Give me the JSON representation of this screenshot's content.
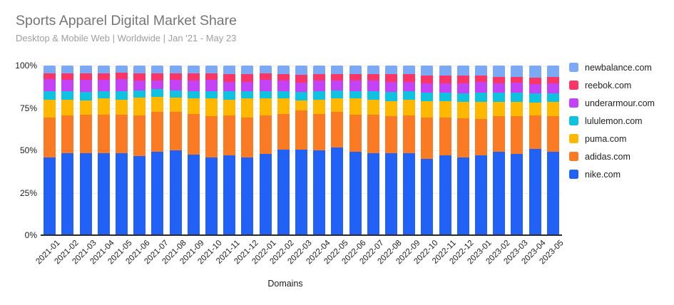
{
  "chart_data": {
    "type": "bar",
    "stacked": true,
    "stack_mode": "percent",
    "title": "Sports Apparel Digital Market Share",
    "subtitle": "Desktop & Mobile Web | Worldwide | Jan '21 - May 23",
    "xlabel": "Domains",
    "ylabel": "",
    "ylim": [
      0,
      100
    ],
    "grid": true,
    "legend_position": "right",
    "ytick_values": [
      0,
      25,
      50,
      75,
      100
    ],
    "yticks": [
      "0%",
      "25%",
      "50%",
      "75%",
      "100%"
    ],
    "categories": [
      "2021-01",
      "2021-02",
      "2021-03",
      "2021-04",
      "2021-05",
      "2021-06",
      "2021-07",
      "2021-08",
      "2021-09",
      "2021-10",
      "2021-11",
      "2021-12",
      "2022-01",
      "2022-02",
      "2022-03",
      "2022-04",
      "2022-05",
      "2022-06",
      "2022-07",
      "2022-08",
      "2022-09",
      "2022-10",
      "2022-11",
      "2022-12",
      "2023-01",
      "2023-02",
      "2023-03",
      "2023-04",
      "2023-05"
    ],
    "series": [
      {
        "name": "nike.com",
        "color": "#2161F5",
        "values": [
          46.0,
          48.5,
          48.5,
          48.5,
          48.5,
          46.5,
          49.0,
          50.0,
          47.5,
          46.0,
          47.0,
          46.0,
          48.0,
          50.5,
          50.5,
          50.0,
          51.5,
          49.0,
          48.5,
          48.5,
          48.5,
          45.0,
          47.0,
          46.0,
          47.0,
          49.0,
          48.0,
          51.0,
          49.0
        ]
      },
      {
        "name": "adidas.com",
        "color": "#FB7B24",
        "values": [
          23.5,
          22.0,
          22.5,
          22.5,
          22.5,
          24.0,
          23.5,
          22.5,
          24.0,
          24.0,
          23.5,
          23.5,
          22.5,
          21.0,
          23.0,
          21.5,
          21.0,
          22.0,
          22.5,
          21.5,
          22.0,
          24.5,
          22.5,
          23.0,
          21.5,
          21.0,
          22.0,
          19.5,
          21.0
        ]
      },
      {
        "name": "puma.com",
        "color": "#FFB800",
        "values": [
          10.5,
          9.5,
          8.5,
          9.5,
          9.0,
          10.5,
          9.0,
          8.5,
          9.0,
          10.5,
          9.5,
          11.0,
          10.0,
          9.0,
          6.0,
          8.5,
          8.0,
          9.5,
          9.0,
          9.0,
          9.5,
          9.5,
          9.5,
          9.5,
          10.0,
          8.5,
          8.5,
          7.5,
          8.5
        ]
      },
      {
        "name": "lululemon.com",
        "color": "#0EC2E0",
        "values": [
          5.0,
          5.0,
          5.0,
          4.5,
          5.0,
          4.5,
          4.5,
          4.5,
          4.5,
          4.5,
          5.0,
          4.5,
          4.5,
          4.5,
          5.0,
          5.0,
          5.0,
          4.5,
          5.0,
          5.5,
          5.0,
          5.0,
          5.0,
          5.0,
          5.5,
          5.5,
          5.5,
          5.5,
          5.0
        ]
      },
      {
        "name": "underarmour.com",
        "color": "#C443F7",
        "values": [
          7.0,
          6.5,
          7.0,
          6.5,
          7.0,
          5.5,
          5.0,
          6.0,
          6.0,
          6.5,
          5.5,
          5.5,
          6.5,
          6.0,
          5.5,
          6.0,
          5.5,
          6.0,
          6.0,
          6.0,
          5.5,
          5.5,
          5.5,
          6.0,
          6.5,
          5.5,
          6.0,
          5.5,
          6.0
        ]
      },
      {
        "name": "reebok.com",
        "color": "#FB3566",
        "values": [
          3.5,
          4.0,
          4.0,
          4.0,
          4.0,
          4.5,
          4.5,
          4.0,
          4.5,
          4.0,
          4.5,
          4.5,
          4.0,
          4.0,
          4.5,
          4.0,
          4.0,
          4.0,
          4.0,
          4.5,
          4.5,
          4.5,
          4.5,
          4.5,
          3.5,
          4.0,
          3.5,
          4.0,
          4.0
        ]
      },
      {
        "name": "newbalance.com",
        "color": "#7CA9F6",
        "values": [
          4.5,
          4.5,
          4.5,
          4.5,
          4.0,
          4.5,
          4.5,
          4.5,
          4.5,
          4.5,
          5.0,
          5.0,
          4.5,
          5.0,
          5.5,
          5.0,
          5.0,
          5.0,
          5.0,
          5.0,
          5.0,
          6.0,
          6.0,
          6.0,
          6.0,
          6.5,
          6.5,
          7.0,
          6.5
        ]
      }
    ],
    "legend_order_top_to_bottom": [
      "newbalance.com",
      "reebok.com",
      "underarmour.com",
      "lululemon.com",
      "puma.com",
      "adidas.com",
      "nike.com"
    ]
  }
}
